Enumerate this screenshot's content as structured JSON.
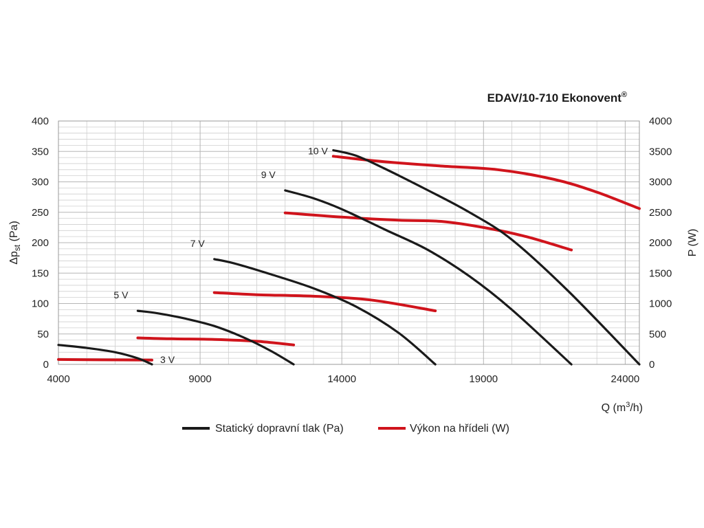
{
  "chart_data": {
    "type": "line",
    "title": "EDAV/10-710 Ekonovent",
    "title_mark": "®",
    "xlabel_main": "Q (m",
    "xlabel_sup": "3",
    "xlabel_end": "/h)",
    "ylabel_left_prefix": "Δp",
    "ylabel_left_sub": "st",
    "ylabel_left_suffix": " (Pa)",
    "ylabel_right": "P (W)",
    "xlim": [
      4000,
      24500
    ],
    "ylim_left": [
      0,
      400
    ],
    "ylim_right": [
      0,
      4000
    ],
    "x_ticks": [
      4000,
      9000,
      14000,
      19000,
      24000
    ],
    "y_ticks_left": [
      0,
      50,
      100,
      150,
      200,
      250,
      300,
      350,
      400
    ],
    "y_ticks_right": [
      0,
      500,
      1000,
      1500,
      2000,
      2500,
      3000,
      3500,
      4000
    ],
    "grid": true,
    "legend_position": "bottom",
    "legend": [
      {
        "label": "Statický dopravní tlak (Pa)",
        "color": "#1a1a1a"
      },
      {
        "label": "Výkon na hřídeli (W)",
        "color": "#d0141c"
      }
    ],
    "pressure_series": [
      {
        "label": "3 V",
        "x": [
          4000,
          5000,
          6000,
          6800,
          7300
        ],
        "y": [
          32,
          27,
          20,
          10,
          0
        ]
      },
      {
        "label": "5 V",
        "x": [
          6800,
          7500,
          8500,
          9500,
          10500,
          11500,
          12300
        ],
        "y": [
          88,
          84,
          75,
          63,
          45,
          22,
          0
        ]
      },
      {
        "label": "7 V",
        "x": [
          9500,
          10200,
          11500,
          13000,
          14500,
          16000,
          17300
        ],
        "y": [
          173,
          166,
          148,
          125,
          95,
          52,
          0
        ]
      },
      {
        "label": "9 V",
        "x": [
          12000,
          13000,
          14000,
          15500,
          17000,
          18500,
          20000,
          22100
        ],
        "y": [
          286,
          273,
          255,
          222,
          189,
          145,
          90,
          0
        ]
      },
      {
        "label": "10 V",
        "x": [
          13700,
          14500,
          15500,
          17000,
          18500,
          20000,
          22000,
          24500
        ],
        "y": [
          352,
          343,
          322,
          287,
          250,
          205,
          120,
          0
        ]
      }
    ],
    "power_series": [
      {
        "label": "3 V",
        "x": [
          4000,
          5500,
          7300
        ],
        "y": [
          80,
          75,
          70
        ]
      },
      {
        "label": "5 V",
        "x": [
          6800,
          8000,
          9500,
          11000,
          12300
        ],
        "y": [
          435,
          420,
          410,
          380,
          320
        ]
      },
      {
        "label": "7 V",
        "x": [
          9500,
          11000,
          13000,
          15000,
          17300
        ],
        "y": [
          1180,
          1145,
          1120,
          1060,
          880
        ]
      },
      {
        "label": "9 V",
        "x": [
          12000,
          14000,
          16000,
          17500,
          19000,
          20500,
          22100
        ],
        "y": [
          2490,
          2420,
          2370,
          2350,
          2250,
          2100,
          1880
        ]
      },
      {
        "label": "10 V",
        "x": [
          13700,
          15500,
          17500,
          19500,
          21500,
          23000,
          24500
        ],
        "y": [
          3420,
          3330,
          3260,
          3200,
          3040,
          2830,
          2560
        ]
      }
    ]
  }
}
